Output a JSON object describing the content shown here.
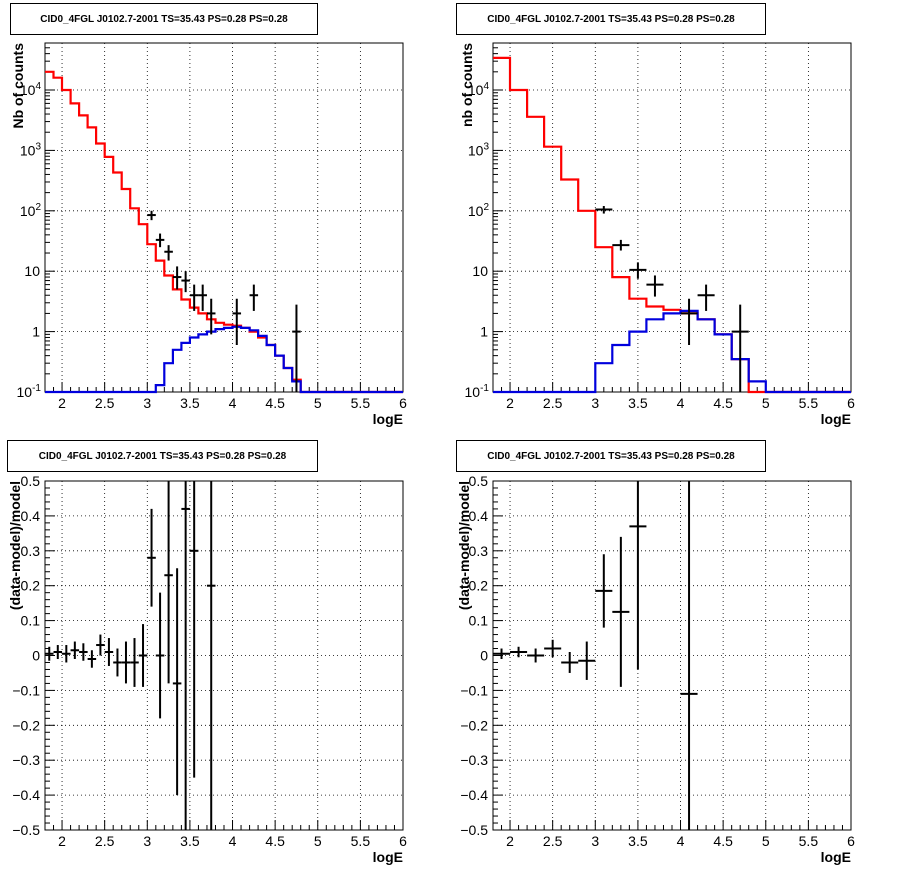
{
  "chart_data": [
    {
      "type": "line",
      "title": "CID0_4FGL J0102.7-2001 TS=35.43 PS=0.28 PS=0.28",
      "xlabel": "logE",
      "ylabel": "Nb of counts",
      "xlim": [
        1.8,
        6.0
      ],
      "ylim": [
        0.1,
        60000
      ],
      "yscale": "log",
      "grid": true,
      "x_ticks": [
        "2",
        "2.5",
        "3",
        "3.5",
        "4",
        "4.5",
        "5",
        "5.5",
        "6"
      ],
      "y_ticks": [
        "10^-1",
        "1",
        "10",
        "10^2",
        "10^3",
        "10^4"
      ],
      "series": [
        {
          "color": "#ff0000",
          "style": "step",
          "edges": [
            1.8,
            1.9,
            2.0,
            2.1,
            2.2,
            2.3,
            2.4,
            2.5,
            2.6,
            2.7,
            2.8,
            2.9,
            3.0,
            3.1,
            3.2,
            3.3,
            3.4,
            3.5,
            3.6,
            3.7,
            3.8,
            3.9,
            4.0,
            4.1,
            4.2,
            4.3,
            4.4,
            4.5,
            4.6,
            4.7,
            4.8,
            4.9,
            5.0,
            5.1,
            5.2,
            5.3,
            5.4,
            5.5,
            5.6,
            5.7,
            5.8,
            5.9,
            6.0
          ],
          "values": [
            20000,
            16000,
            10000,
            6000,
            3800,
            2400,
            1300,
            780,
            430,
            230,
            110,
            60,
            28,
            15,
            8.5,
            5,
            3.4,
            2.5,
            2.0,
            1.6,
            1.4,
            1.3,
            1.25,
            1.15,
            1.0,
            0.8,
            0.6,
            0.4,
            0.25,
            0.16,
            0.1,
            0.1,
            0.1,
            0.1,
            0.1,
            0.1,
            0.1,
            0.1,
            0.1,
            0.1,
            0.1,
            0.1
          ]
        },
        {
          "color": "#0000dd",
          "style": "step",
          "edges": [
            1.8,
            1.9,
            2.0,
            2.1,
            2.2,
            2.3,
            2.4,
            2.5,
            2.6,
            2.7,
            2.8,
            2.9,
            3.0,
            3.1,
            3.2,
            3.3,
            3.4,
            3.5,
            3.6,
            3.7,
            3.8,
            3.9,
            4.0,
            4.1,
            4.2,
            4.3,
            4.4,
            4.5,
            4.6,
            4.7,
            4.8,
            4.9,
            5.0,
            5.1,
            5.2,
            5.3,
            5.4,
            5.5,
            5.6,
            5.7,
            5.8,
            5.9,
            6.0
          ],
          "values": [
            0.1,
            0.1,
            0.1,
            0.1,
            0.1,
            0.1,
            0.1,
            0.1,
            0.1,
            0.1,
            0.1,
            0.1,
            0.1,
            0.13,
            0.3,
            0.5,
            0.65,
            0.8,
            0.9,
            1.0,
            1.1,
            1.15,
            1.2,
            1.15,
            1.05,
            0.85,
            0.6,
            0.4,
            0.25,
            0.15,
            0.1,
            0.1,
            0.1,
            0.1,
            0.1,
            0.1,
            0.1,
            0.1,
            0.1,
            0.1,
            0.1,
            0.1
          ]
        },
        {
          "color": "#000000",
          "style": "errorbar",
          "points": [
            {
              "x": 3.05,
              "y": 85,
              "lo": 70,
              "hi": 100,
              "xerr": 0.05
            },
            {
              "x": 3.15,
              "y": 33,
              "lo": 25,
              "hi": 42,
              "xerr": 0.05
            },
            {
              "x": 3.25,
              "y": 21,
              "lo": 15,
              "hi": 27,
              "xerr": 0.05
            },
            {
              "x": 3.35,
              "y": 8,
              "lo": 5,
              "hi": 12,
              "xerr": 0.05
            },
            {
              "x": 3.45,
              "y": 7,
              "lo": 4.5,
              "hi": 10,
              "xerr": 0.05
            },
            {
              "x": 3.55,
              "y": 4,
              "lo": 2.2,
              "hi": 6,
              "xerr": 0.05
            },
            {
              "x": 3.65,
              "y": 4,
              "lo": 2.2,
              "hi": 6,
              "xerr": 0.05
            },
            {
              "x": 3.75,
              "y": 2,
              "lo": 0.9,
              "hi": 3.5,
              "xerr": 0.05
            },
            {
              "x": 4.05,
              "y": 2,
              "lo": 0.6,
              "hi": 3.5,
              "xerr": 0.05
            },
            {
              "x": 4.25,
              "y": 4,
              "lo": 2.2,
              "hi": 6,
              "xerr": 0.05
            },
            {
              "x": 4.75,
              "y": 1,
              "lo": 0.1,
              "hi": 2.8,
              "xerr": 0.05
            }
          ]
        }
      ]
    },
    {
      "type": "line",
      "title": "CID0_4FGL J0102.7-2001 TS=35.43 PS=0.28 PS=0.28",
      "xlabel": "logE",
      "ylabel": "nb of counts",
      "xlim": [
        1.8,
        6.0
      ],
      "ylim": [
        0.1,
        60000
      ],
      "yscale": "log",
      "grid": true,
      "x_ticks": [
        "2",
        "2.5",
        "3",
        "3.5",
        "4",
        "4.5",
        "5",
        "5.5",
        "6"
      ],
      "y_ticks": [
        "10^-1",
        "1",
        "10",
        "10^2",
        "10^3",
        "10^4"
      ],
      "series": [
        {
          "color": "#ff0000",
          "style": "step",
          "edges": [
            1.8,
            2.0,
            2.2,
            2.4,
            2.6,
            2.8,
            3.0,
            3.2,
            3.4,
            3.6,
            3.8,
            4.0,
            4.2,
            4.4,
            4.6,
            4.8,
            5.0,
            5.2,
            5.4,
            5.6,
            5.8,
            6.0
          ],
          "values": [
            34000,
            10000,
            3600,
            1150,
            330,
            100,
            25,
            8,
            3.5,
            2.6,
            2.3,
            2.0,
            1.6,
            0.9,
            0.35,
            0.1,
            0.1,
            0.1,
            0.1,
            0.1,
            0.1
          ]
        },
        {
          "color": "#0000dd",
          "style": "step",
          "edges": [
            1.8,
            2.0,
            2.2,
            2.4,
            2.6,
            2.8,
            3.0,
            3.2,
            3.4,
            3.6,
            3.8,
            4.0,
            4.2,
            4.4,
            4.6,
            4.8,
            5.0,
            5.2,
            5.4,
            5.6,
            5.8,
            6.0
          ],
          "values": [
            0.1,
            0.1,
            0.1,
            0.1,
            0.1,
            0.1,
            0.3,
            0.6,
            1.0,
            1.6,
            2.0,
            2.2,
            1.6,
            0.9,
            0.35,
            0.15,
            0.1,
            0.1,
            0.1,
            0.1,
            0.1
          ]
        },
        {
          "color": "#000000",
          "style": "errorbar",
          "points": [
            {
              "x": 3.1,
              "y": 105,
              "lo": 90,
              "hi": 120,
              "xerr": 0.1
            },
            {
              "x": 3.3,
              "y": 27,
              "lo": 22,
              "hi": 33,
              "xerr": 0.1
            },
            {
              "x": 3.5,
              "y": 10.5,
              "lo": 7.5,
              "hi": 14,
              "xerr": 0.1
            },
            {
              "x": 3.7,
              "y": 6,
              "lo": 3.8,
              "hi": 8.5,
              "xerr": 0.1
            },
            {
              "x": 4.1,
              "y": 2,
              "lo": 0.6,
              "hi": 3.5,
              "xerr": 0.1
            },
            {
              "x": 4.3,
              "y": 4,
              "lo": 2.2,
              "hi": 6,
              "xerr": 0.1
            },
            {
              "x": 4.7,
              "y": 1,
              "lo": 0.1,
              "hi": 2.8,
              "xerr": 0.1
            }
          ]
        }
      ]
    },
    {
      "type": "scatter",
      "title": "CID0_4FGL J0102.7-2001 TS=35.43 PS=0.28 PS=0.28",
      "xlabel": "logE",
      "ylabel": "(data-model)/model",
      "xlim": [
        1.8,
        6.0
      ],
      "ylim": [
        -0.5,
        0.5
      ],
      "yscale": "linear",
      "grid": true,
      "x_ticks": [
        "2",
        "2.5",
        "3",
        "3.5",
        "4",
        "4.5",
        "5",
        "5.5",
        "6"
      ],
      "y_ticks": [
        "-0.5",
        "-0.4",
        "-0.3",
        "-0.2",
        "-0.1",
        "0",
        "0.1",
        "0.2",
        "0.3",
        "0.4",
        "0.5"
      ],
      "series": [
        {
          "color": "#000000",
          "style": "errorbar",
          "points": [
            {
              "x": 1.85,
              "y": 0.005,
              "lo": -0.015,
              "hi": 0.025,
              "xerr": 0.05
            },
            {
              "x": 1.95,
              "y": 0.01,
              "lo": -0.01,
              "hi": 0.03,
              "xerr": 0.05
            },
            {
              "x": 2.05,
              "y": 0.005,
              "lo": -0.02,
              "hi": 0.03,
              "xerr": 0.05
            },
            {
              "x": 2.15,
              "y": 0.015,
              "lo": -0.01,
              "hi": 0.04,
              "xerr": 0.05
            },
            {
              "x": 2.25,
              "y": 0.01,
              "lo": -0.015,
              "hi": 0.035,
              "xerr": 0.05
            },
            {
              "x": 2.35,
              "y": -0.01,
              "lo": -0.035,
              "hi": 0.015,
              "xerr": 0.05
            },
            {
              "x": 2.45,
              "y": 0.03,
              "lo": 0.0,
              "hi": 0.06,
              "xerr": 0.05
            },
            {
              "x": 2.55,
              "y": 0.01,
              "lo": -0.03,
              "hi": 0.05,
              "xerr": 0.05
            },
            {
              "x": 2.65,
              "y": -0.02,
              "lo": -0.06,
              "hi": 0.02,
              "xerr": 0.05
            },
            {
              "x": 2.75,
              "y": -0.02,
              "lo": -0.08,
              "hi": 0.04,
              "xerr": 0.05
            },
            {
              "x": 2.85,
              "y": -0.02,
              "lo": -0.09,
              "hi": 0.05,
              "xerr": 0.05
            },
            {
              "x": 2.95,
              "y": 0.0,
              "lo": -0.09,
              "hi": 0.09,
              "xerr": 0.05
            },
            {
              "x": 3.05,
              "y": 0.28,
              "lo": 0.14,
              "hi": 0.42,
              "xerr": 0.05
            },
            {
              "x": 3.15,
              "y": 0.0,
              "lo": -0.18,
              "hi": 0.18,
              "xerr": 0.05
            },
            {
              "x": 3.25,
              "y": 0.23,
              "lo": -0.08,
              "hi": 0.5,
              "xerr": 0.05
            },
            {
              "x": 3.35,
              "y": -0.08,
              "lo": -0.4,
              "hi": 0.25,
              "xerr": 0.05
            },
            {
              "x": 3.45,
              "y": 0.42,
              "lo": -0.5,
              "hi": 0.5,
              "xerr": 0.05
            },
            {
              "x": 3.55,
              "y": 0.3,
              "lo": -0.35,
              "hi": 0.5,
              "xerr": 0.05
            },
            {
              "x": 3.75,
              "y": 0.2,
              "lo": -0.5,
              "hi": 0.5,
              "xerr": 0.05
            }
          ]
        }
      ]
    },
    {
      "type": "scatter",
      "title": "CID0_4FGL J0102.7-2001 TS=35.43 PS=0.28 PS=0.28",
      "xlabel": "logE",
      "ylabel": "(data-model)/model",
      "xlim": [
        1.8,
        6.0
      ],
      "ylim": [
        -0.5,
        0.5
      ],
      "yscale": "linear",
      "grid": true,
      "x_ticks": [
        "2",
        "2.5",
        "3",
        "3.5",
        "4",
        "4.5",
        "5",
        "5.5",
        "6"
      ],
      "y_ticks": [
        "-0.5",
        "-0.4",
        "-0.3",
        "-0.2",
        "-0.1",
        "0",
        "0.1",
        "0.2",
        "0.3",
        "0.4",
        "0.5"
      ],
      "series": [
        {
          "color": "#000000",
          "style": "errorbar",
          "points": [
            {
              "x": 1.9,
              "y": 0.005,
              "lo": -0.01,
              "hi": 0.02,
              "xerr": 0.1
            },
            {
              "x": 2.1,
              "y": 0.01,
              "lo": -0.005,
              "hi": 0.025,
              "xerr": 0.1
            },
            {
              "x": 2.3,
              "y": 0.0,
              "lo": -0.02,
              "hi": 0.02,
              "xerr": 0.1
            },
            {
              "x": 2.5,
              "y": 0.02,
              "lo": -0.005,
              "hi": 0.045,
              "xerr": 0.1
            },
            {
              "x": 2.7,
              "y": -0.02,
              "lo": -0.05,
              "hi": 0.01,
              "xerr": 0.1
            },
            {
              "x": 2.9,
              "y": -0.015,
              "lo": -0.07,
              "hi": 0.04,
              "xerr": 0.1
            },
            {
              "x": 3.1,
              "y": 0.185,
              "lo": 0.08,
              "hi": 0.29,
              "xerr": 0.1
            },
            {
              "x": 3.3,
              "y": 0.125,
              "lo": -0.09,
              "hi": 0.34,
              "xerr": 0.1
            },
            {
              "x": 3.5,
              "y": 0.37,
              "lo": -0.04,
              "hi": 0.5,
              "xerr": 0.1
            },
            {
              "x": 4.1,
              "y": -0.11,
              "lo": -0.5,
              "hi": 0.5,
              "xerr": 0.1
            }
          ]
        }
      ]
    }
  ]
}
